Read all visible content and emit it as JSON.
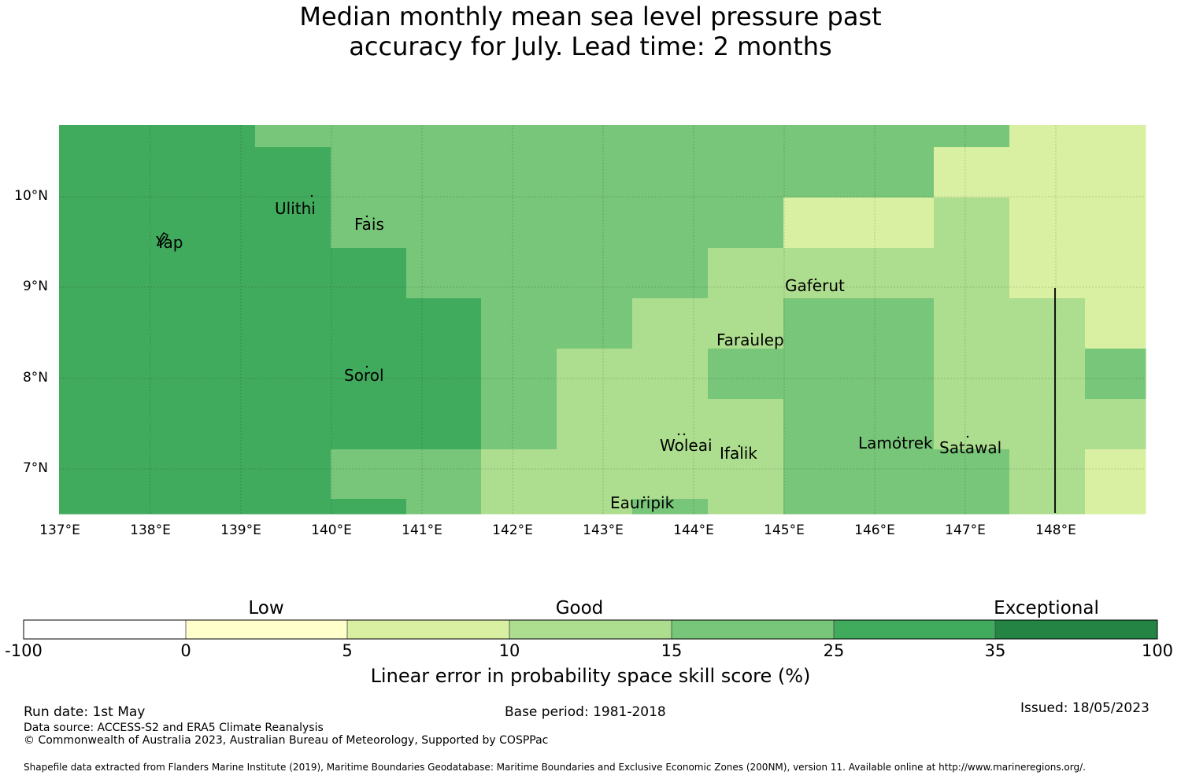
{
  "title_line1": "Median monthly mean sea level pressure past",
  "title_line2": "accuracy for July. Lead time: 2 months",
  "map": {
    "lat_ticks": [
      "10°N",
      "9°N",
      "8°N",
      "7°N"
    ],
    "lon_ticks": [
      "137°E",
      "138°E",
      "139°E",
      "140°E",
      "141°E",
      "142°E",
      "143°E",
      "144°E",
      "145°E",
      "146°E",
      "147°E",
      "148°E"
    ],
    "places": [
      {
        "name": "Yap"
      },
      {
        "name": "Ulithi"
      },
      {
        "name": "Fais"
      },
      {
        "name": "Gaferut"
      },
      {
        "name": "Faraulep"
      },
      {
        "name": "Sorol"
      },
      {
        "name": "Woleai"
      },
      {
        "name": "Ifalik"
      },
      {
        "name": "Lamotrek"
      },
      {
        "name": "Satawal"
      },
      {
        "name": "Eauripik"
      }
    ]
  },
  "colorbar": {
    "categories": [
      "Low",
      "Good",
      "Exceptional"
    ],
    "ticks": [
      "-100",
      "0",
      "5",
      "10",
      "15",
      "25",
      "35",
      "100"
    ],
    "colors": [
      "#ffffff",
      "#ffffcc",
      "#d9f0a3",
      "#addd8e",
      "#78c679",
      "#41ab5d",
      "#238443"
    ],
    "label": "Linear error in probability space skill score (%)"
  },
  "footer": {
    "run_date": "Run date: 1st May",
    "base_period": "Base period: 1981-2018",
    "issued": "Issued: 18/05/2023",
    "data_source": "Data source: ACCESS-S2 and ERA5 Climate Reanalysis",
    "copyright": "© Commonwealth of Australia 2023, Australian Bureau of Meteorology, Supported by COSPPac",
    "shapefile": "Shapefile data extracted from Flanders Marine Institute (2019), Maritime Boundaries Geodatabase: Maritime Boundaries and Exclusive Economic Zones (200NM), version 11. Available online at http://www.marineregions.org/."
  }
}
